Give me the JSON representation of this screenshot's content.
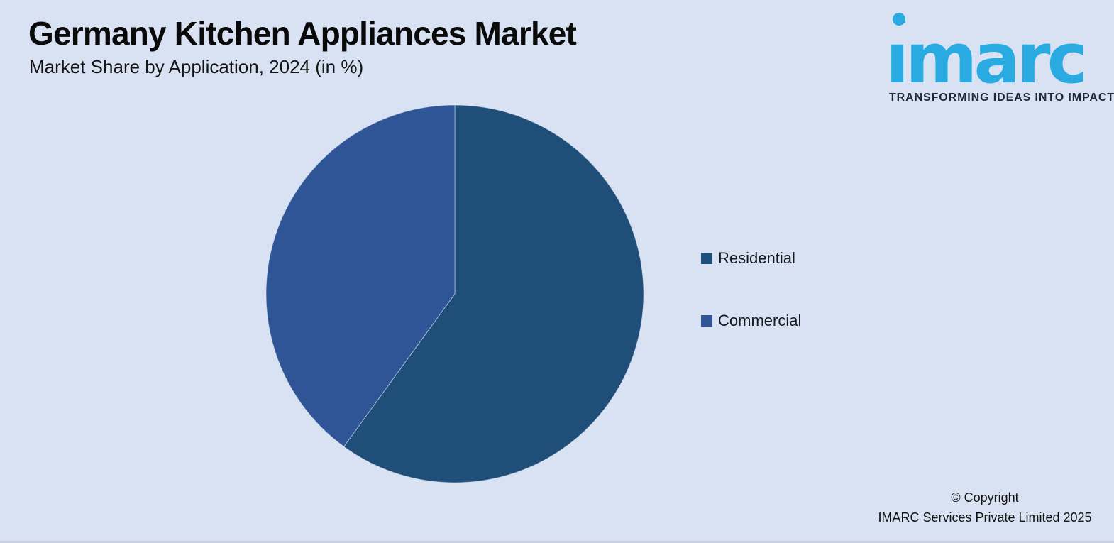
{
  "header": {
    "title": "Germany Kitchen Appliances Market",
    "subtitle": "Market Share by Application, 2024 (in %)"
  },
  "logo": {
    "wordmark": "imarc",
    "tagline": "TRANSFORMING IDEAS INTO IMPACT",
    "brand_color": "#29ABE2",
    "tagline_color": "#1E2838"
  },
  "chart_data": {
    "type": "pie",
    "title": "Germany Kitchen Appliances Market",
    "subtitle": "Market Share by Application, 2024 (in %)",
    "categories": [
      "Residential",
      "Commercial"
    ],
    "values": [
      60,
      40
    ],
    "unit": "%",
    "colors": [
      "#1F4E79",
      "#2F5597"
    ],
    "start_angle_deg": 0,
    "direction": "clockwise",
    "legend_position": "right",
    "data_labels_shown": false
  },
  "legend": {
    "items": [
      {
        "label": "Residential",
        "color": "#1F4E79"
      },
      {
        "label": "Commercial",
        "color": "#2F5597"
      }
    ]
  },
  "footer": {
    "line1": "© Copyright",
    "line2": "IMARC Services Private Limited 2025"
  },
  "colors": {
    "background": "#D9E2F2",
    "slice_separator": "rgba(217,226,242,0.55)"
  }
}
